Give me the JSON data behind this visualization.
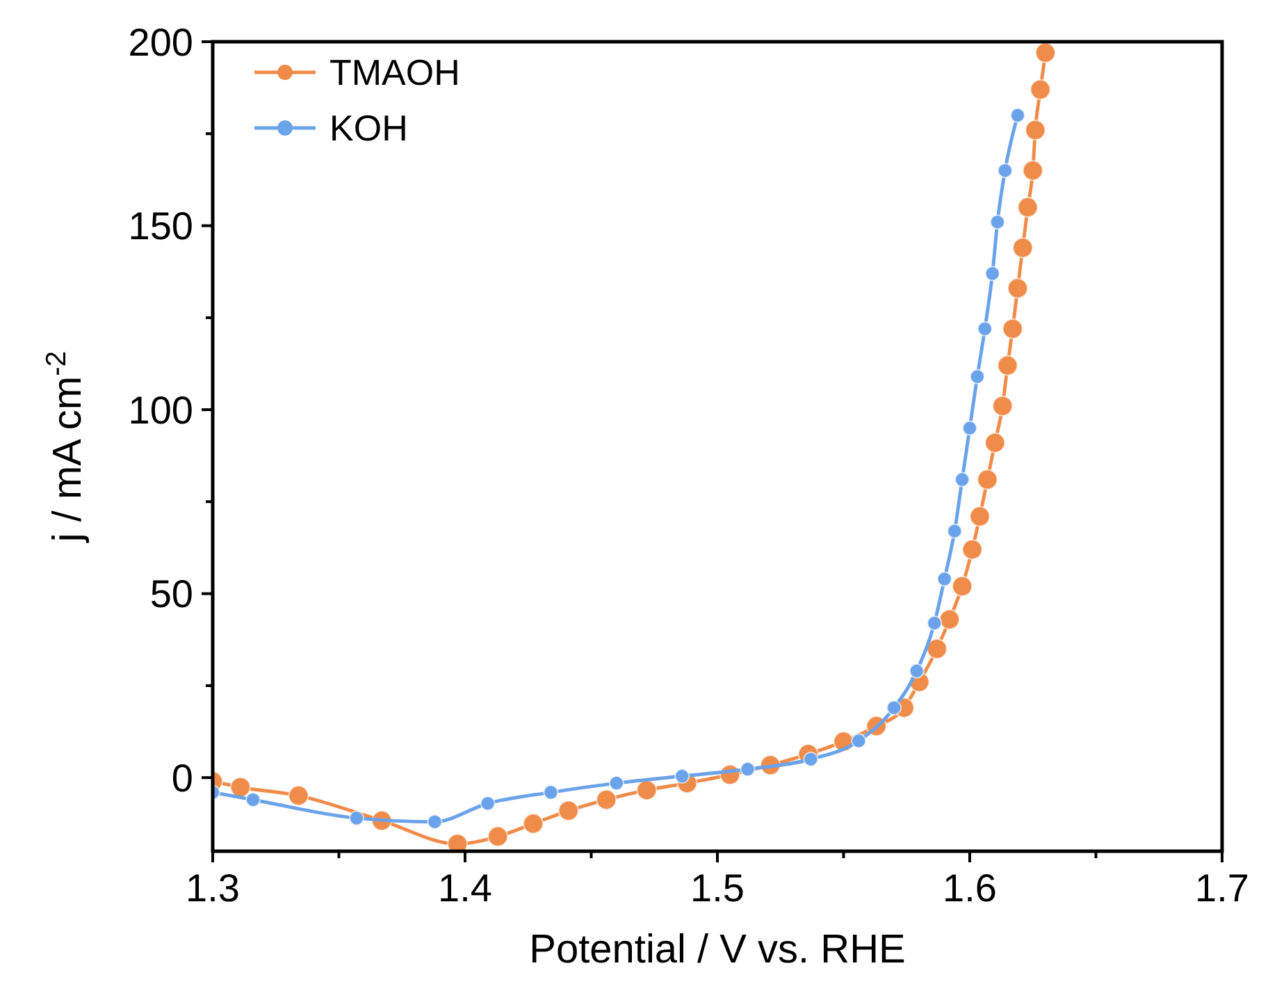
{
  "chart_data": {
    "type": "line",
    "xlabel": "Potential / V vs. RHE",
    "ylabel": "j / mA cm$^{-2}$",
    "xlim": [
      1.3,
      1.7
    ],
    "xticks": [
      1.3,
      1.4,
      1.5,
      1.6,
      1.7
    ],
    "ylim": [
      -20,
      200
    ],
    "yticks": [
      0,
      50,
      100,
      150,
      200
    ],
    "legend": "top left",
    "marker": "circle",
    "line_style": "solid",
    "grid": false,
    "series": [
      {
        "name": "TMAOH",
        "color": "#f08c4a",
        "x": [
          1.3,
          1.311,
          1.334,
          1.367,
          1.397,
          1.413,
          1.427,
          1.441,
          1.456,
          1.472,
          1.488,
          1.505,
          1.521,
          1.536,
          1.55,
          1.563,
          1.574,
          1.58,
          1.587,
          1.592,
          1.597,
          1.601,
          1.604,
          1.607,
          1.61,
          1.613,
          1.615,
          1.617,
          1.619,
          1.621,
          1.623,
          1.625,
          1.626,
          1.628,
          1.63
        ],
        "values": [
          -1,
          -2.6,
          -4.9,
          -11.7,
          -18,
          -16,
          -12.5,
          -9,
          -6,
          -3.4,
          -1.5,
          0.8,
          3.4,
          6.4,
          9.8,
          14,
          19,
          26,
          35,
          43,
          52,
          62,
          71,
          81,
          91,
          101,
          112,
          122,
          133,
          144,
          155,
          165,
          176,
          187,
          197
        ]
      },
      {
        "name": "KOH",
        "color": "#6aa3ea",
        "x": [
          1.3,
          1.316,
          1.357,
          1.388,
          1.409,
          1.434,
          1.46,
          1.486,
          1.512,
          1.537,
          1.556,
          1.57,
          1.579,
          1.586,
          1.59,
          1.594,
          1.597,
          1.6,
          1.603,
          1.606,
          1.609,
          1.611,
          1.614,
          1.619
        ],
        "values": [
          -4,
          -6,
          -11,
          -12,
          -7,
          -4,
          -1.5,
          0.4,
          2.3,
          5,
          10,
          19,
          29,
          42,
          54,
          67,
          81,
          95,
          109,
          122,
          137,
          151,
          165,
          180
        ]
      }
    ]
  }
}
